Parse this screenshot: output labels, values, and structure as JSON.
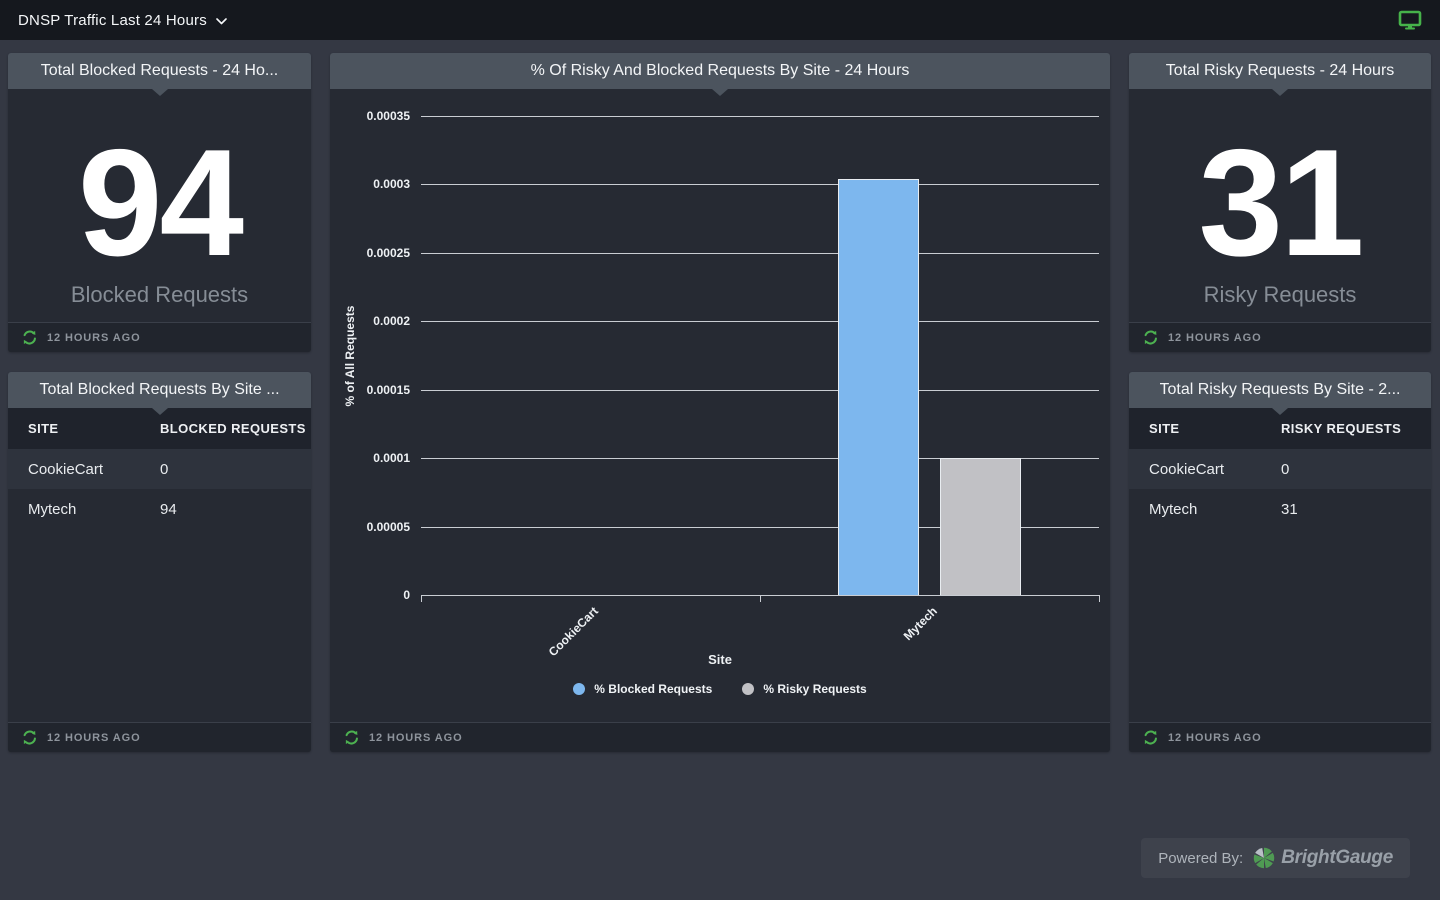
{
  "topbar": {
    "title": "DNSP Traffic Last 24 Hours"
  },
  "panels": {
    "blocked_total": {
      "title": "Total Blocked Requests - 24 Ho...",
      "value": "94",
      "caption": "Blocked Requests",
      "updated": "12 HOURS AGO"
    },
    "blocked_by_site": {
      "title": "Total Blocked Requests By Site ...",
      "columns": [
        "SITE",
        "BLOCKED REQUESTS"
      ],
      "rows": [
        [
          "CookieCart",
          "0"
        ],
        [
          "Mytech",
          "94"
        ]
      ],
      "updated": "12 HOURS AGO"
    },
    "chart": {
      "title": "% Of Risky And Blocked Requests By Site - 24 Hours",
      "updated": "12 HOURS AGO"
    },
    "risky_total": {
      "title": "Total Risky Requests - 24 Hours",
      "value": "31",
      "caption": "Risky Requests",
      "updated": "12 HOURS AGO"
    },
    "risky_by_site": {
      "title": "Total Risky Requests By Site - 2...",
      "columns": [
        "SITE",
        "RISKY REQUESTS"
      ],
      "rows": [
        [
          "CookieCart",
          "0"
        ],
        [
          "Mytech",
          "31"
        ]
      ],
      "updated": "12 HOURS AGO"
    }
  },
  "chart_data": {
    "type": "bar",
    "title": "% Of Risky And Blocked Requests By Site - 24 Hours",
    "categories": [
      "CookieCart",
      "Mytech"
    ],
    "series": [
      {
        "name": "% Blocked Requests",
        "color": "#7db7ee",
        "values": [
          0,
          0.000304
        ]
      },
      {
        "name": "% Risky Requests",
        "color": "#c1c1c5",
        "values": [
          0,
          0.0001
        ]
      }
    ],
    "xlabel": "Site",
    "ylabel": "% of All Requests",
    "ylim": [
      0,
      0.00035
    ],
    "yticks": [
      "0",
      "0.00005",
      "0.0001",
      "0.00015",
      "0.0002",
      "0.00025",
      "0.0003",
      "0.00035"
    ],
    "grid": true,
    "legend_position": "bottom"
  },
  "footer_brand": {
    "powered_by": "Powered By:",
    "brand": "BrightGauge"
  },
  "colors": {
    "accent_blue": "#7db7ee",
    "accent_gray": "#c1c1c5",
    "green": "#46b24a"
  }
}
